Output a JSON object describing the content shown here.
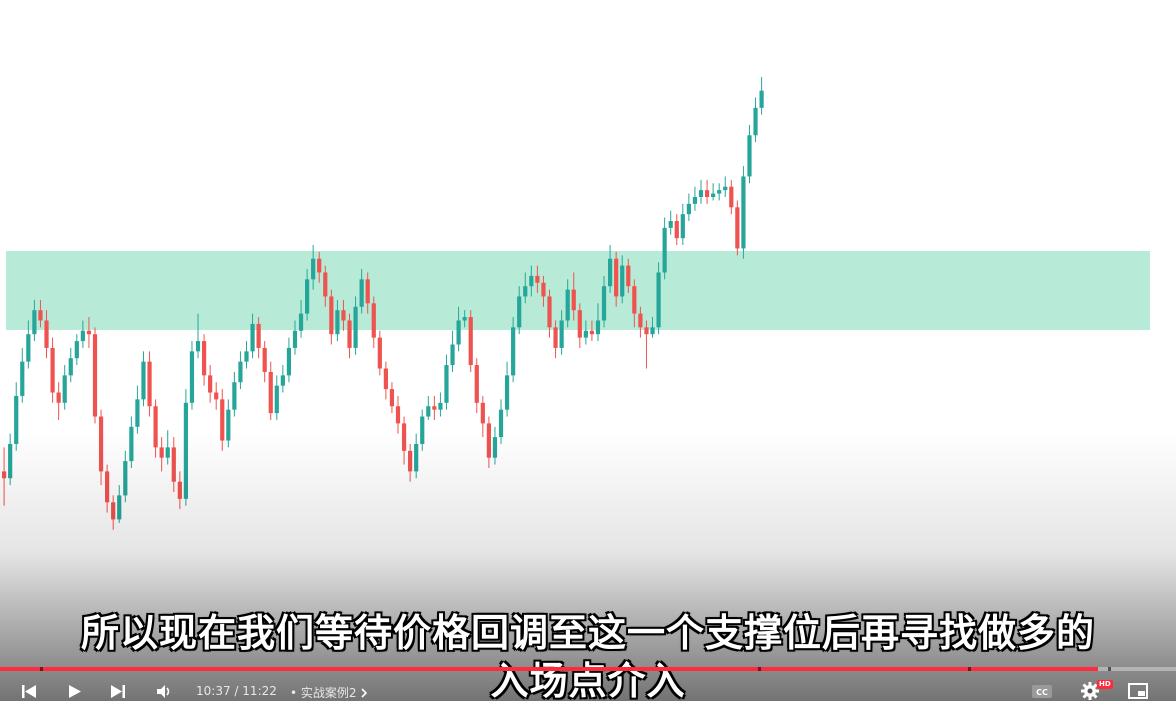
{
  "subtitle": {
    "line1": "所以现在我们等待价格回调至这一个支撑位后再寻找做多的",
    "line2": "入场点介入"
  },
  "player": {
    "current_time": "10:37",
    "duration": "11:22",
    "time_separator": "/",
    "chapter_title": "实战案例2",
    "chapter_bullet": "•",
    "progress_fraction": 0.934,
    "hd_badge": "HD",
    "colors": {
      "progress": "#ff2a3d",
      "bullish": "#26a69a",
      "bearish": "#ef5350",
      "zone": "#b7ebd7"
    }
  },
  "icons": [
    "previous-icon",
    "play-icon",
    "next-icon",
    "volume-icon",
    "chevron-right-icon",
    "captions-icon",
    "gear-icon",
    "miniplayer-icon"
  ],
  "chart_data": {
    "type": "candlestick",
    "support_zone": {
      "color": "#b7ebd7"
    },
    "candles": [
      [
        0.2,
        0.18,
        0.27,
        0.1
      ],
      [
        0.18,
        0.28,
        0.31,
        0.16
      ],
      [
        0.28,
        0.42,
        0.46,
        0.26
      ],
      [
        0.42,
        0.52,
        0.56,
        0.4
      ],
      [
        0.52,
        0.6,
        0.64,
        0.5
      ],
      [
        0.6,
        0.67,
        0.7,
        0.58
      ],
      [
        0.67,
        0.64,
        0.7,
        0.62
      ],
      [
        0.64,
        0.56,
        0.67,
        0.53
      ],
      [
        0.56,
        0.43,
        0.59,
        0.4
      ],
      [
        0.43,
        0.4,
        0.46,
        0.35
      ],
      [
        0.4,
        0.48,
        0.51,
        0.38
      ],
      [
        0.48,
        0.53,
        0.56,
        0.46
      ],
      [
        0.53,
        0.58,
        0.6,
        0.51
      ],
      [
        0.58,
        0.61,
        0.64,
        0.56
      ],
      [
        0.61,
        0.6,
        0.65,
        0.56
      ],
      [
        0.6,
        0.36,
        0.62,
        0.34
      ],
      [
        0.36,
        0.2,
        0.38,
        0.16
      ],
      [
        0.2,
        0.11,
        0.22,
        0.08
      ],
      [
        0.11,
        0.06,
        0.13,
        0.03
      ],
      [
        0.06,
        0.13,
        0.16,
        0.05
      ],
      [
        0.13,
        0.23,
        0.26,
        0.11
      ],
      [
        0.23,
        0.33,
        0.36,
        0.21
      ],
      [
        0.33,
        0.41,
        0.45,
        0.31
      ],
      [
        0.41,
        0.52,
        0.55,
        0.39
      ],
      [
        0.52,
        0.39,
        0.55,
        0.36
      ],
      [
        0.39,
        0.27,
        0.41,
        0.24
      ],
      [
        0.27,
        0.24,
        0.3,
        0.2
      ],
      [
        0.24,
        0.27,
        0.32,
        0.22
      ],
      [
        0.27,
        0.17,
        0.3,
        0.14
      ],
      [
        0.17,
        0.12,
        0.2,
        0.09
      ],
      [
        0.12,
        0.4,
        0.44,
        0.1
      ],
      [
        0.4,
        0.55,
        0.58,
        0.38
      ],
      [
        0.55,
        0.58,
        0.66,
        0.53
      ],
      [
        0.58,
        0.48,
        0.6,
        0.45
      ],
      [
        0.48,
        0.43,
        0.51,
        0.4
      ],
      [
        0.43,
        0.41,
        0.46,
        0.38
      ],
      [
        0.41,
        0.29,
        0.44,
        0.26
      ],
      [
        0.29,
        0.38,
        0.41,
        0.27
      ],
      [
        0.38,
        0.46,
        0.49,
        0.36
      ],
      [
        0.46,
        0.52,
        0.55,
        0.44
      ],
      [
        0.52,
        0.55,
        0.58,
        0.5
      ],
      [
        0.55,
        0.63,
        0.66,
        0.53
      ],
      [
        0.63,
        0.56,
        0.65,
        0.53
      ],
      [
        0.56,
        0.49,
        0.58,
        0.46
      ],
      [
        0.49,
        0.37,
        0.52,
        0.35
      ],
      [
        0.37,
        0.45,
        0.48,
        0.35
      ],
      [
        0.45,
        0.48,
        0.51,
        0.43
      ],
      [
        0.48,
        0.56,
        0.59,
        0.46
      ],
      [
        0.56,
        0.61,
        0.64,
        0.54
      ],
      [
        0.61,
        0.66,
        0.7,
        0.59
      ],
      [
        0.66,
        0.76,
        0.79,
        0.64
      ],
      [
        0.76,
        0.82,
        0.86,
        0.73
      ],
      [
        0.82,
        0.78,
        0.84,
        0.75
      ],
      [
        0.78,
        0.71,
        0.8,
        0.68
      ],
      [
        0.71,
        0.6,
        0.73,
        0.57
      ],
      [
        0.6,
        0.67,
        0.7,
        0.58
      ],
      [
        0.67,
        0.64,
        0.7,
        0.61
      ],
      [
        0.64,
        0.56,
        0.66,
        0.53
      ],
      [
        0.56,
        0.68,
        0.71,
        0.54
      ],
      [
        0.68,
        0.76,
        0.79,
        0.66
      ],
      [
        0.76,
        0.69,
        0.78,
        0.66
      ],
      [
        0.69,
        0.59,
        0.71,
        0.56
      ],
      [
        0.59,
        0.5,
        0.61,
        0.48
      ],
      [
        0.5,
        0.44,
        0.52,
        0.41
      ],
      [
        0.44,
        0.39,
        0.46,
        0.37
      ],
      [
        0.39,
        0.34,
        0.42,
        0.31
      ],
      [
        0.34,
        0.26,
        0.36,
        0.22
      ],
      [
        0.26,
        0.2,
        0.28,
        0.17
      ],
      [
        0.2,
        0.28,
        0.31,
        0.18
      ],
      [
        0.28,
        0.36,
        0.38,
        0.26
      ],
      [
        0.36,
        0.39,
        0.42,
        0.35
      ],
      [
        0.39,
        0.38,
        0.42,
        0.35
      ],
      [
        0.38,
        0.4,
        0.43,
        0.36
      ],
      [
        0.4,
        0.51,
        0.54,
        0.38
      ],
      [
        0.51,
        0.57,
        0.61,
        0.49
      ],
      [
        0.57,
        0.64,
        0.68,
        0.55
      ],
      [
        0.64,
        0.65,
        0.67,
        0.62
      ],
      [
        0.65,
        0.51,
        0.67,
        0.49
      ],
      [
        0.51,
        0.4,
        0.53,
        0.37
      ],
      [
        0.4,
        0.34,
        0.42,
        0.3
      ],
      [
        0.34,
        0.24,
        0.36,
        0.21
      ],
      [
        0.24,
        0.3,
        0.33,
        0.22
      ],
      [
        0.3,
        0.38,
        0.41,
        0.28
      ],
      [
        0.38,
        0.48,
        0.52,
        0.36
      ],
      [
        0.48,
        0.62,
        0.65,
        0.46
      ],
      [
        0.62,
        0.71,
        0.74,
        0.6
      ],
      [
        0.71,
        0.74,
        0.78,
        0.69
      ],
      [
        0.74,
        0.77,
        0.8,
        0.71
      ],
      [
        0.77,
        0.75,
        0.8,
        0.72
      ],
      [
        0.75,
        0.71,
        0.77,
        0.68
      ],
      [
        0.71,
        0.62,
        0.73,
        0.59
      ],
      [
        0.62,
        0.56,
        0.64,
        0.53
      ],
      [
        0.56,
        0.64,
        0.67,
        0.54
      ],
      [
        0.64,
        0.73,
        0.76,
        0.62
      ],
      [
        0.73,
        0.67,
        0.78,
        0.64
      ],
      [
        0.67,
        0.59,
        0.69,
        0.56
      ],
      [
        0.59,
        0.61,
        0.64,
        0.57
      ],
      [
        0.61,
        0.6,
        0.64,
        0.58
      ],
      [
        0.6,
        0.64,
        0.69,
        0.58
      ],
      [
        0.64,
        0.74,
        0.77,
        0.62
      ],
      [
        0.74,
        0.82,
        0.86,
        0.72
      ],
      [
        0.82,
        0.71,
        0.84,
        0.68
      ],
      [
        0.71,
        0.8,
        0.83,
        0.69
      ],
      [
        0.8,
        0.74,
        0.82,
        0.72
      ],
      [
        0.74,
        0.66,
        0.76,
        0.62
      ],
      [
        0.66,
        0.62,
        0.68,
        0.59
      ],
      [
        0.62,
        0.6,
        0.64,
        0.5
      ],
      [
        0.6,
        0.62,
        0.65,
        0.59
      ],
      [
        0.62,
        0.78,
        0.81,
        0.6
      ],
      [
        0.78,
        0.91,
        0.94,
        0.76
      ],
      [
        0.91,
        0.93,
        0.96,
        0.89
      ],
      [
        0.93,
        0.88,
        0.95,
        0.86
      ],
      [
        0.88,
        0.95,
        0.98,
        0.86
      ],
      [
        0.95,
        0.98,
        1.01,
        0.93
      ],
      [
        0.98,
        1.0,
        1.03,
        0.96
      ],
      [
        1.0,
        1.02,
        1.05,
        0.98
      ],
      [
        1.02,
        1.0,
        1.05,
        0.98
      ],
      [
        1.0,
        1.01,
        1.04,
        0.99
      ],
      [
        1.01,
        1.02,
        1.04,
        0.99
      ],
      [
        1.02,
        1.03,
        1.06,
        1.0
      ],
      [
        1.03,
        0.97,
        1.05,
        0.95
      ],
      [
        0.97,
        0.85,
        0.99,
        0.83
      ],
      [
        0.85,
        1.06,
        1.09,
        0.82
      ],
      [
        1.06,
        1.18,
        1.21,
        1.04
      ],
      [
        1.18,
        1.26,
        1.29,
        1.16
      ],
      [
        1.26,
        1.31,
        1.35,
        1.24
      ]
    ]
  }
}
